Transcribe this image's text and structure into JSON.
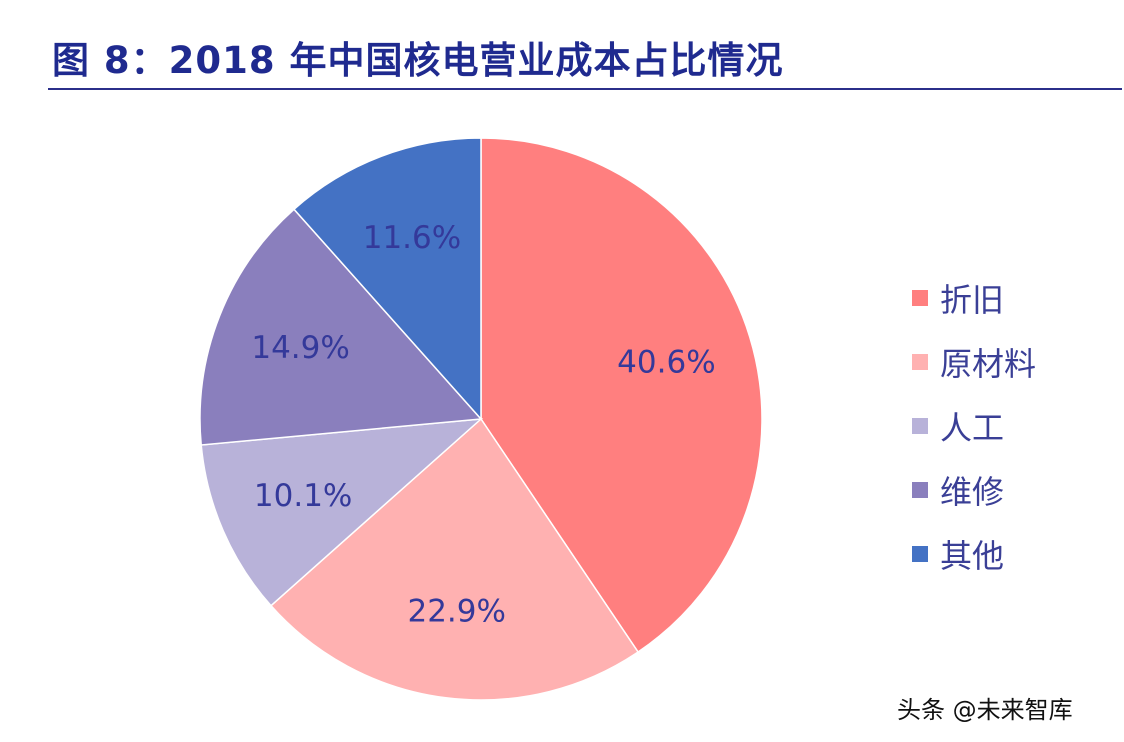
{
  "title": "图 8：2018 年中国核电营业成本占比情况",
  "watermark": "头条 @未来智库",
  "chart_data": {
    "type": "pie",
    "title": "图 8：2018 年中国核电营业成本占比情况",
    "legend_position": "right",
    "start_angle_deg": 0,
    "direction": "clockwise",
    "slices": [
      {
        "label": "折旧",
        "value": 40.6,
        "display": "40.6%",
        "color": "#ff7f7f"
      },
      {
        "label": "原材料",
        "value": 22.9,
        "display": "22.9%",
        "color": "#ffb1b1"
      },
      {
        "label": "人工",
        "value": 10.1,
        "display": "10.1%",
        "color": "#b8b2d9"
      },
      {
        "label": "维修",
        "value": 14.9,
        "display": "14.9%",
        "color": "#8a7fbd"
      },
      {
        "label": "其他",
        "value": 11.6,
        "display": "11.6%",
        "color": "#4472c4"
      }
    ],
    "label_color": "#34399a"
  }
}
